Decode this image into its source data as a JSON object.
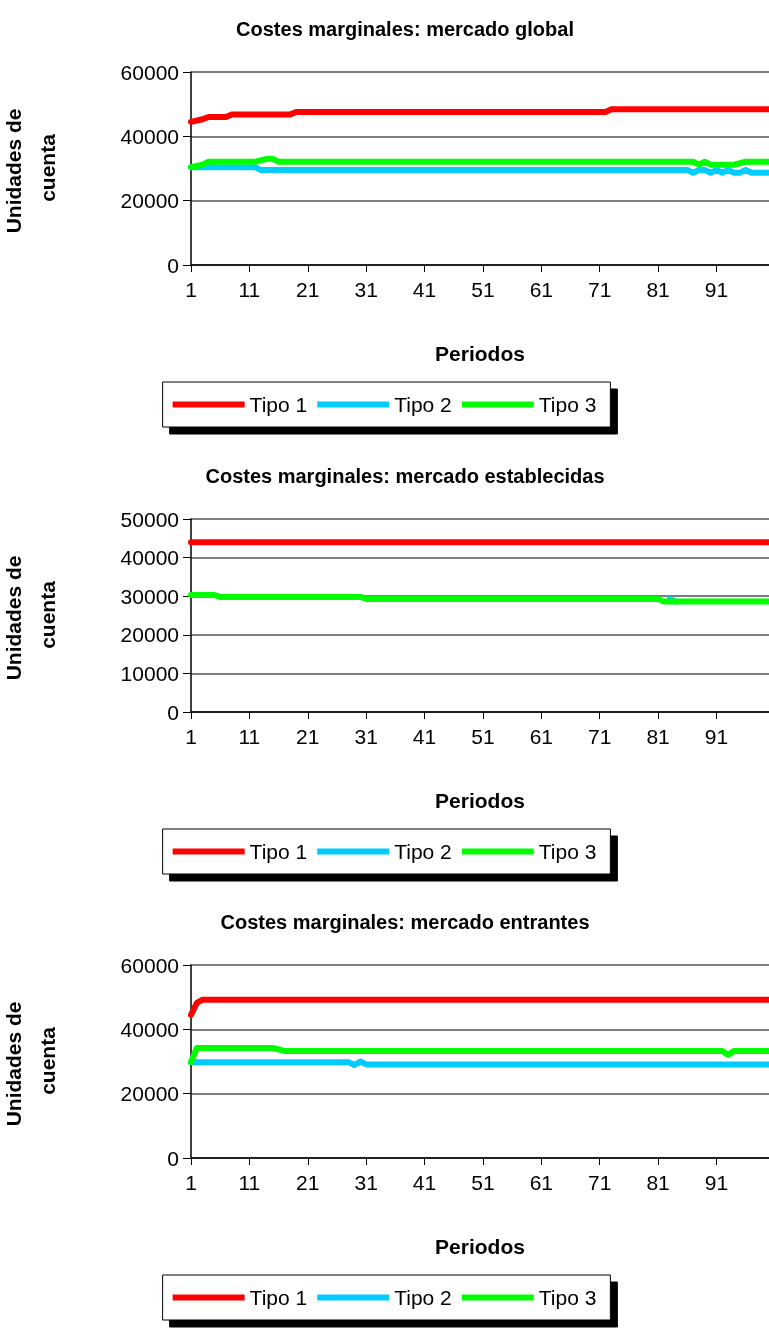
{
  "chart_data": [
    {
      "type": "line",
      "title": "Costes marginales: mercado global",
      "xlabel": "Periodos",
      "ylabel": "Unidades de cuenta",
      "xlim": [
        1,
        100
      ],
      "xticks": [
        1,
        11,
        21,
        31,
        41,
        51,
        61,
        71,
        81,
        91
      ],
      "ylim": [
        0,
        60000
      ],
      "yticks": [
        0,
        20000,
        40000,
        60000
      ],
      "grid": "y",
      "legend": "bottom",
      "marker": "none",
      "line_style": "solid",
      "series": [
        {
          "name": "Tipo 1",
          "color": "#ff0000",
          "x": [
            1,
            3,
            4,
            7,
            8,
            18,
            19,
            72,
            73,
            100
          ],
          "values": [
            44500,
            45300,
            46000,
            46000,
            46800,
            46800,
            47600,
            47600,
            48400,
            48400
          ]
        },
        {
          "name": "Tipo 2",
          "color": "#00ccff",
          "x": [
            1,
            12,
            13,
            86,
            87,
            88,
            89,
            90,
            91,
            92,
            93,
            94,
            95,
            96,
            97,
            100
          ],
          "values": [
            30400,
            30400,
            29500,
            29500,
            28700,
            29500,
            29500,
            28700,
            29500,
            28700,
            29500,
            28700,
            28700,
            29500,
            28700,
            28700
          ]
        },
        {
          "name": "Tipo 3",
          "color": "#00ff00",
          "x": [
            1,
            3,
            4,
            12,
            14,
            15,
            16,
            87,
            88,
            89,
            90,
            94,
            96,
            100
          ],
          "values": [
            30400,
            31200,
            32100,
            32100,
            33000,
            33000,
            32100,
            32100,
            31200,
            32100,
            31200,
            31200,
            32100,
            32100
          ]
        }
      ]
    },
    {
      "type": "line",
      "title": "Costes marginales: mercado establecidas",
      "xlabel": "Periodos",
      "ylabel": "Unidades de cuenta",
      "xlim": [
        1,
        100
      ],
      "xticks": [
        1,
        11,
        21,
        31,
        41,
        51,
        61,
        71,
        81,
        91
      ],
      "ylim": [
        0,
        50000
      ],
      "yticks": [
        0,
        10000,
        20000,
        30000,
        40000,
        50000
      ],
      "grid": "y",
      "legend": "bottom",
      "marker": "none",
      "line_style": "solid",
      "series": [
        {
          "name": "Tipo 1",
          "color": "#ff0000",
          "x": [
            1,
            100
          ],
          "values": [
            44000,
            44000
          ]
        },
        {
          "name": "Tipo 2",
          "color": "#00ccff",
          "x": [
            83,
            84
          ],
          "values": [
            29300,
            28600
          ]
        },
        {
          "name": "Tipo 3",
          "color": "#00ff00",
          "x": [
            1,
            5,
            6,
            30,
            31,
            81,
            82,
            100
          ],
          "values": [
            30300,
            30300,
            29800,
            29800,
            29300,
            29300,
            28600,
            28600
          ]
        }
      ]
    },
    {
      "type": "line",
      "title": "Costes marginales: mercado entrantes",
      "xlabel": "Periodos",
      "ylabel": "Unidades de cuenta",
      "xlim": [
        1,
        100
      ],
      "xticks": [
        1,
        11,
        21,
        31,
        41,
        51,
        61,
        71,
        81,
        91
      ],
      "ylim": [
        0,
        60000
      ],
      "yticks": [
        0,
        20000,
        40000,
        60000
      ],
      "grid": "y",
      "legend": "bottom",
      "marker": "none",
      "line_style": "solid",
      "series": [
        {
          "name": "Tipo 1",
          "color": "#ff0000",
          "x": [
            1,
            2,
            3,
            100
          ],
          "values": [
            44500,
            48200,
            49200,
            49200
          ]
        },
        {
          "name": "Tipo 2",
          "color": "#00ccff",
          "x": [
            1,
            28,
            29,
            30,
            31,
            100
          ],
          "values": [
            29800,
            29800,
            28900,
            30000,
            29100,
            29100
          ]
        },
        {
          "name": "Tipo 3",
          "color": "#00ff00",
          "x": [
            1,
            2,
            15,
            17,
            92,
            93,
            94,
            100
          ],
          "values": [
            29800,
            34200,
            34200,
            33300,
            33300,
            32100,
            33300,
            33300
          ]
        }
      ]
    }
  ]
}
